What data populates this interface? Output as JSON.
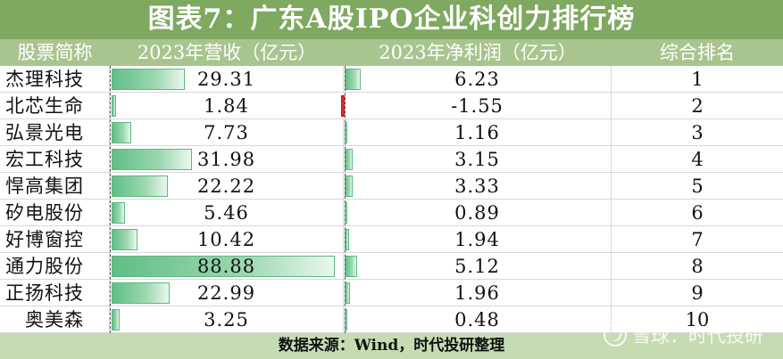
{
  "title": "图表7：广东A股IPO企业科创力排行榜",
  "columns": {
    "name": "股票简称",
    "revenue": "2023年营收（亿元）",
    "net_profit": "2023年净利润（亿元）",
    "rank": "综合排名"
  },
  "footer": "数据来源：Wind，时代投研整理",
  "watermark": "雪球：时代投研",
  "colors": {
    "title_bg": "#7fa860",
    "header_bg": "#a9c58f",
    "footer_bg": "#c5dcb3",
    "positive_bar": "#5fbe86",
    "negative_bar": "#e03030"
  },
  "chart_data": {
    "type": "table",
    "rows": [
      {
        "name": "杰理科技",
        "revenue": "29.31",
        "net_profit": "6.23",
        "rank": "1"
      },
      {
        "name": "北芯生命",
        "revenue": "1.84",
        "net_profit": "-1.55",
        "rank": "2"
      },
      {
        "name": "弘景光电",
        "revenue": "7.73",
        "net_profit": "1.16",
        "rank": "3"
      },
      {
        "name": "宏工科技",
        "revenue": "31.98",
        "net_profit": "3.15",
        "rank": "4"
      },
      {
        "name": "悍高集团",
        "revenue": "22.22",
        "net_profit": "3.33",
        "rank": "5"
      },
      {
        "name": "矽电股份",
        "revenue": "5.46",
        "net_profit": "0.89",
        "rank": "6"
      },
      {
        "name": "好博窗控",
        "revenue": "10.42",
        "net_profit": "1.94",
        "rank": "7"
      },
      {
        "name": "通力股份",
        "revenue": "88.88",
        "net_profit": "5.12",
        "rank": "8"
      },
      {
        "name": "正扬科技",
        "revenue": "22.99",
        "net_profit": "1.96",
        "rank": "9"
      },
      {
        "name": "奥美森",
        "revenue": "3.25",
        "net_profit": "0.48",
        "rank": "10"
      }
    ],
    "revenue_max": 88.88,
    "net_profit_max": 88.88
  }
}
